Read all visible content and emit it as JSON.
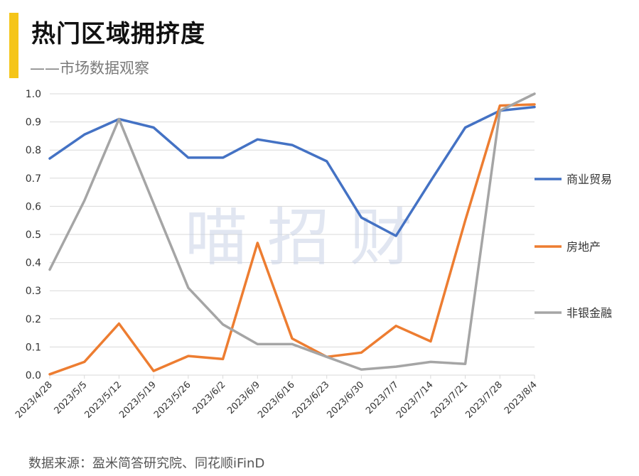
{
  "header": {
    "title": "热门区域拥挤度",
    "subtitle": "——市场数据观察",
    "accent_color": "#f5c518"
  },
  "watermark": "喵 招 财",
  "source": "数据来源：盈米简答研究院、同花顺iFinD",
  "chart_data": {
    "type": "line",
    "x": [
      "2023/4/28",
      "2023/5/5",
      "2023/5/12",
      "2023/5/19",
      "2023/5/26",
      "2023/6/2",
      "2023/6/9",
      "2023/6/16",
      "2023/6/23",
      "2023/6/30",
      "2023/7/7",
      "2023/7/14",
      "2023/7/21",
      "2023/7/28",
      "2023/8/4"
    ],
    "y_ticks": [
      "0.0",
      "0.1",
      "0.2",
      "0.3",
      "0.4",
      "0.5",
      "0.6",
      "0.7",
      "0.8",
      "0.9",
      "1.0"
    ],
    "ylim": [
      0,
      1.0
    ],
    "grid": true,
    "legend_position": "right",
    "series": [
      {
        "name": "商业贸易",
        "color": "#4472c4",
        "values": [
          0.77,
          0.855,
          0.91,
          0.88,
          0.773,
          0.773,
          0.838,
          0.818,
          0.76,
          0.56,
          0.495,
          0.69,
          0.88,
          0.94,
          0.953
        ]
      },
      {
        "name": "房地产",
        "color": "#ed7d31",
        "values": [
          0.003,
          0.047,
          0.183,
          0.015,
          0.068,
          0.057,
          0.47,
          0.13,
          0.065,
          0.08,
          0.175,
          0.12,
          0.55,
          0.958,
          0.962
        ]
      },
      {
        "name": "非银金融",
        "color": "#a5a5a5",
        "values": [
          0.375,
          0.62,
          0.91,
          0.61,
          0.31,
          0.18,
          0.11,
          0.11,
          0.065,
          0.02,
          0.03,
          0.047,
          0.04,
          0.94,
          1.0
        ]
      }
    ]
  }
}
